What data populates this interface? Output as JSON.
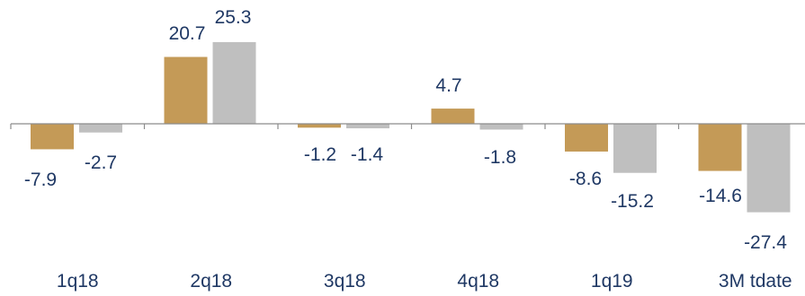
{
  "chart_data": {
    "type": "bar",
    "categories": [
      "1q18",
      "2q18",
      "3q18",
      "4q18",
      "1q19",
      "3M tdate"
    ],
    "series": [
      {
        "values": [
          -7.9,
          20.7,
          -1.2,
          4.7,
          -8.6,
          -14.6
        ],
        "color": "#C49A57"
      },
      {
        "values": [
          -2.7,
          25.3,
          -1.4,
          -1.8,
          -15.2,
          -27.4
        ],
        "color": "#BFBFBF"
      }
    ],
    "data_labels": {
      "s0": [
        "-7.9",
        "20.7",
        "-1.2",
        "4.7",
        "-8.6",
        "-14.6"
      ],
      "s1": [
        "-2.7",
        "25.3",
        "-1.4",
        "-1.8",
        "-15.2",
        "-27.4"
      ]
    },
    "title": "",
    "xlabel": "",
    "ylabel": "",
    "ylim": [
      -30,
      30
    ],
    "grid": false,
    "legend": "none",
    "axis_color": "#8C8C8C",
    "label_color": "#1F3864"
  }
}
